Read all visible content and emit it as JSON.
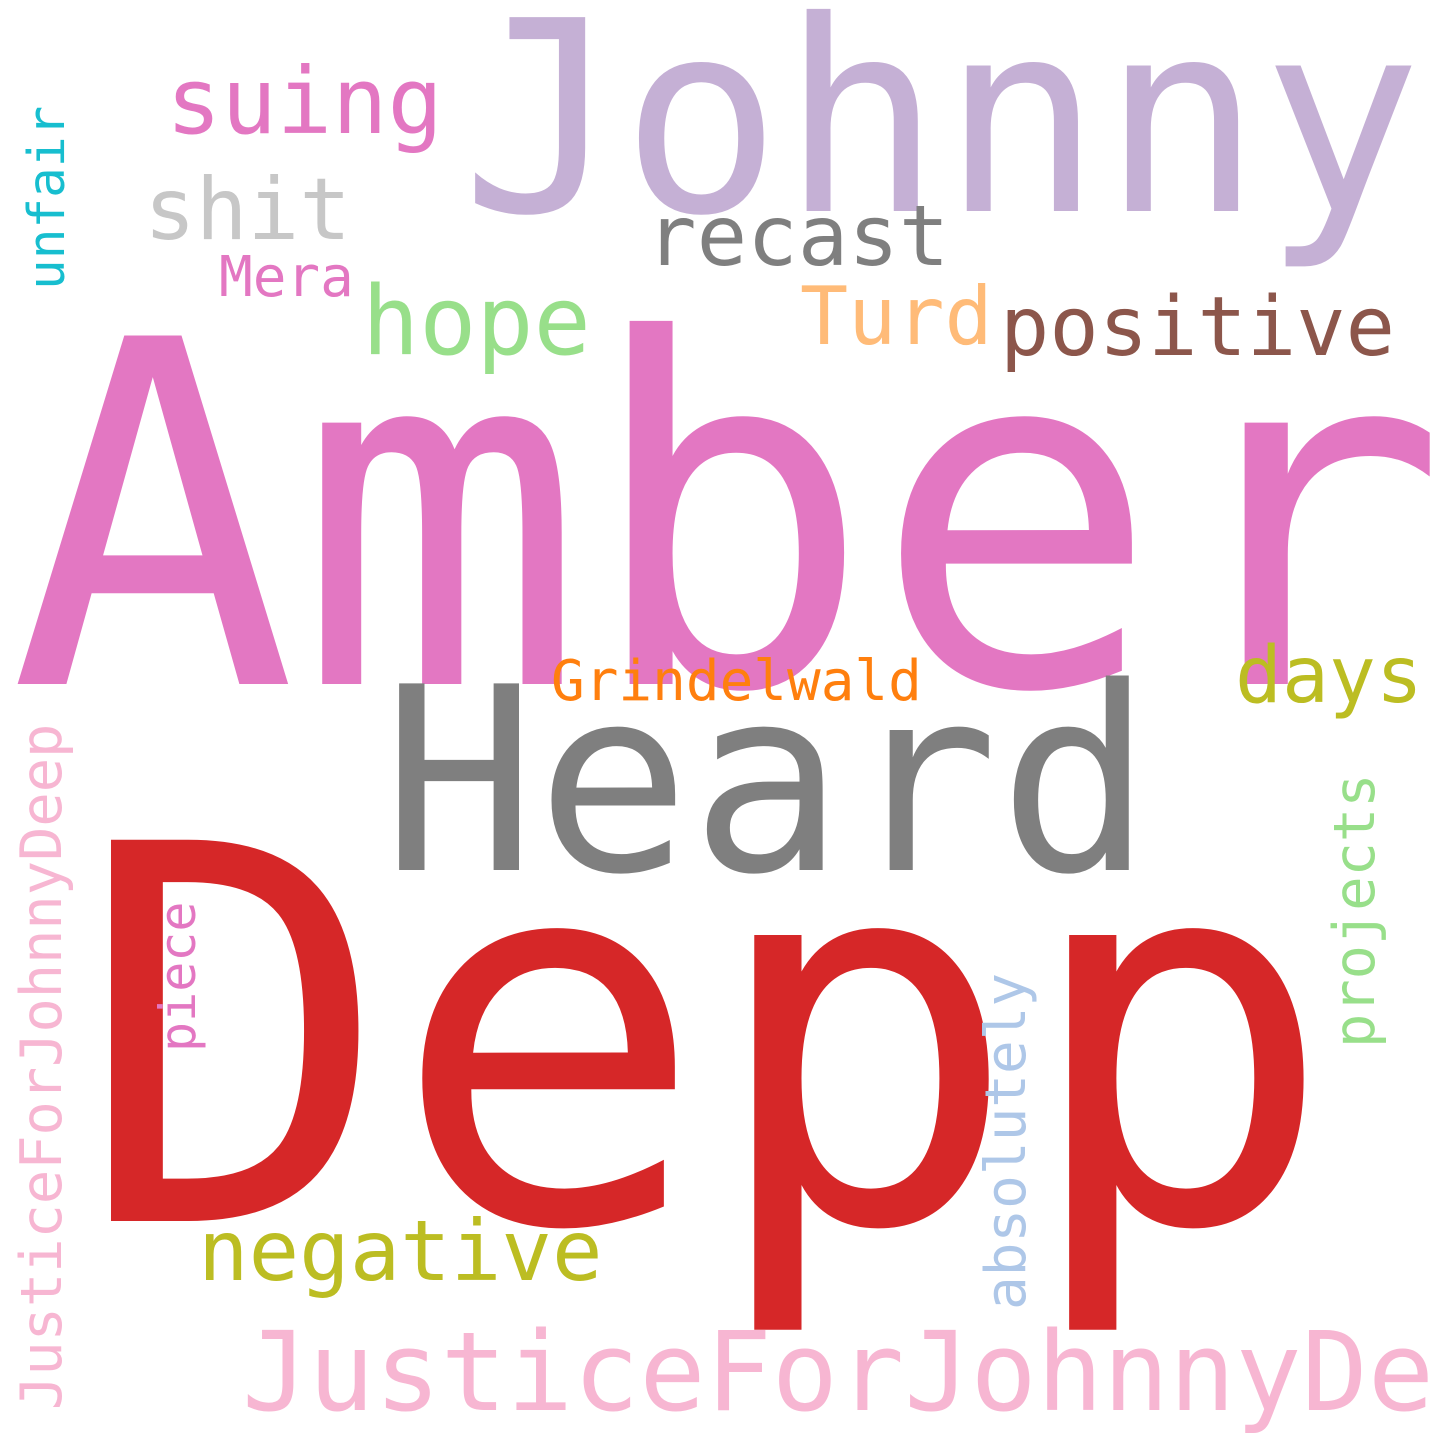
{
  "cloud": {
    "background": "#ffffff",
    "words": {
      "johnny": {
        "text": "Johnny",
        "color": "#c5b0d5",
        "orientation": "horizontal"
      },
      "amber": {
        "text": "Amber",
        "color": "#e377c2",
        "orientation": "horizontal"
      },
      "depp": {
        "text": "Depp",
        "color": "#d62728",
        "orientation": "horizontal"
      },
      "heard": {
        "text": "Heard",
        "color": "#7f7f7f",
        "orientation": "horizontal"
      },
      "suing": {
        "text": "suing",
        "color": "#e377c2",
        "orientation": "horizontal"
      },
      "shit": {
        "text": "shit",
        "color": "#c7c7c7",
        "orientation": "horizontal"
      },
      "recast": {
        "text": "recast",
        "color": "#7f7f7f",
        "orientation": "horizontal"
      },
      "mera": {
        "text": "Mera",
        "color": "#e377c2",
        "orientation": "horizontal"
      },
      "hope": {
        "text": "hope",
        "color": "#98df8a",
        "orientation": "horizontal"
      },
      "turd": {
        "text": "Turd",
        "color": "#ffbb78",
        "orientation": "horizontal"
      },
      "positive": {
        "text": "positive",
        "color": "#8c564b",
        "orientation": "horizontal"
      },
      "grindelwald": {
        "text": "Grindelwald",
        "color": "#ff7f0e",
        "orientation": "horizontal"
      },
      "days": {
        "text": "days",
        "color": "#bcbd22",
        "orientation": "horizontal"
      },
      "negative": {
        "text": "negative",
        "color": "#bcbd22",
        "orientation": "horizontal"
      },
      "justice_h": {
        "text": "JusticeForJohnnyDepp",
        "color": "#f7b6d2",
        "orientation": "horizontal"
      },
      "unfair": {
        "text": "unfair",
        "color": "#17becf",
        "orientation": "vertical"
      },
      "justice_v": {
        "text": "JusticeForJohnnyDeep",
        "color": "#f7b6d2",
        "orientation": "vertical"
      },
      "piece": {
        "text": "piece",
        "color": "#e377c2",
        "orientation": "vertical"
      },
      "absolutely": {
        "text": "absolutely",
        "color": "#aec7e8",
        "orientation": "vertical"
      },
      "projects": {
        "text": "projects",
        "color": "#98df8a",
        "orientation": "vertical"
      }
    }
  }
}
